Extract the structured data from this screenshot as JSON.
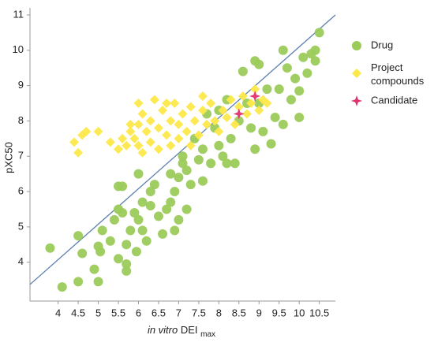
{
  "chart_data": {
    "type": "scatter",
    "x_label": [
      "in vitro",
      "DEI",
      "max"
    ],
    "y_label": "pXC50",
    "xlim": [
      3.3,
      10.9
    ],
    "ylim": [
      2.9,
      11.2
    ],
    "xticks": [
      4,
      4.5,
      5,
      5.5,
      6,
      6.5,
      7,
      7.5,
      8,
      8.5,
      9,
      9.5,
      10,
      10.5
    ],
    "yticks": [
      4,
      5,
      6,
      7,
      8,
      9,
      10,
      11
    ],
    "trend_line": {
      "x": [
        3.3,
        10.9
      ],
      "y": [
        3.37,
        11
      ],
      "color": "#5b7fae"
    },
    "series": [
      {
        "name": "Drug",
        "color": "#9ccb5a",
        "marker": "circle",
        "x": [
          3.8,
          4.1,
          4.5,
          4.6,
          4.5,
          4.9,
          5,
          5.05,
          5.1,
          5,
          5.3,
          5.5,
          5.4,
          5.5,
          5.6,
          5.5,
          5.6,
          5.7,
          5.7,
          5.7,
          5.8,
          5.9,
          5.95,
          6,
          6,
          6.1,
          6.1,
          6.2,
          6.3,
          6.4,
          6.5,
          6.6,
          6.7,
          6.8,
          6.8,
          6.9,
          7,
          7,
          7.1,
          7.2,
          7.2,
          7.3,
          7.4,
          7.5,
          7.6,
          7.7,
          7.8,
          7.9,
          8,
          8,
          8.1,
          8.2,
          8.3,
          8.4,
          8.5,
          8.6,
          8.7,
          8.8,
          8.9,
          8.9,
          9,
          9,
          9.1,
          9.2,
          9.3,
          9.4,
          9.5,
          9.6,
          9.6,
          9.7,
          9.8,
          9.9,
          10,
          10,
          10.1,
          10.2,
          10.3,
          10.4,
          10.5,
          10.4,
          7.1,
          6.3,
          6.9,
          7.6,
          8.2
        ],
        "y": [
          4.4,
          3.3,
          4.75,
          4.25,
          3.45,
          3.8,
          4.45,
          4.3,
          4.9,
          3.45,
          4.6,
          4.1,
          5.2,
          5.5,
          5.4,
          6.15,
          6.15,
          4.5,
          3.75,
          3.95,
          4.9,
          5.4,
          4.3,
          5.2,
          6.5,
          5.7,
          4.9,
          4.6,
          5.6,
          6.2,
          5.3,
          4.8,
          5.5,
          5.7,
          6.5,
          4.9,
          6.4,
          5.2,
          6.8,
          6.6,
          5.5,
          6.2,
          7.5,
          6.9,
          7.2,
          8.2,
          6.8,
          7.8,
          7.3,
          8.3,
          7.0,
          8.6,
          7.5,
          6.8,
          8.0,
          9.4,
          8.5,
          7.8,
          7.2,
          9.7,
          9.6,
          8.5,
          7.7,
          8.9,
          7.35,
          8.1,
          8.9,
          10.0,
          7.9,
          9.5,
          8.6,
          9.2,
          8.1,
          8.85,
          9.8,
          9.35,
          9.9,
          9.7,
          10.5,
          10.0,
          7.0,
          6.0,
          6.0,
          6.3,
          6.8
        ]
      },
      {
        "name": "Project compounds",
        "color": "#fde84a",
        "marker": "diamond",
        "x": [
          4.4,
          4.5,
          4.6,
          4.7,
          5,
          5.3,
          5.5,
          5.6,
          5.7,
          5.8,
          5.9,
          6,
          6,
          6.1,
          6.2,
          6.3,
          6.3,
          6.4,
          6.5,
          6.5,
          6.6,
          6.7,
          6.8,
          6.8,
          6.9,
          7,
          7,
          7.1,
          7.2,
          7.3,
          7.3,
          7.4,
          7.5,
          7.6,
          7.7,
          7.8,
          7.9,
          8,
          8.1,
          8.2,
          8.3,
          8.4,
          8.5,
          8.6,
          8.7,
          8.8,
          8.9,
          9,
          9.1,
          9.2,
          6.0,
          6.7,
          7.6,
          6.1,
          5.8
        ],
        "y": [
          7.4,
          7.1,
          7.6,
          7.7,
          7.7,
          7.4,
          7.2,
          7.5,
          7.3,
          7.7,
          7.5,
          7.9,
          7.3,
          8.2,
          7.7,
          8.0,
          7.4,
          8.6,
          7.8,
          7.2,
          8.3,
          7.6,
          8.0,
          7.3,
          8.5,
          7.9,
          7.5,
          8.2,
          7.7,
          8.4,
          7.3,
          8.0,
          7.6,
          8.3,
          7.9,
          8.5,
          8.0,
          7.7,
          8.3,
          8.1,
          8.6,
          7.9,
          8.4,
          8.7,
          8.2,
          8.5,
          8.9,
          8.3,
          8.6,
          8.5,
          8.5,
          8.5,
          8.7,
          7.1,
          7.9
        ]
      },
      {
        "name": "Candidate",
        "color": "#e0306e",
        "marker": "star",
        "x": [
          8.5,
          8.9
        ],
        "y": [
          8.2,
          8.7
        ]
      }
    ]
  }
}
